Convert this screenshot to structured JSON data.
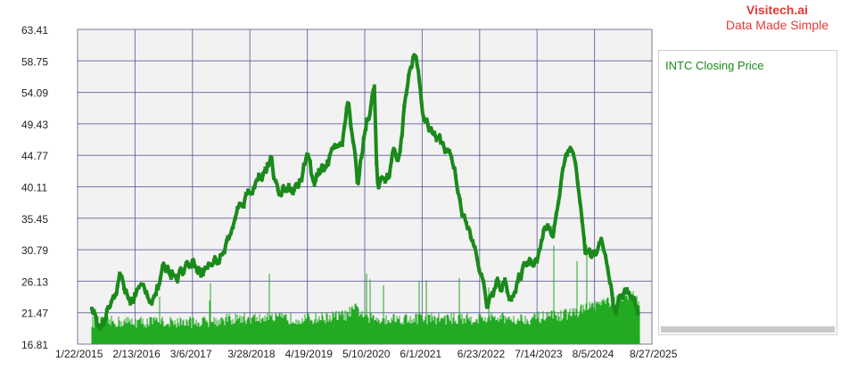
{
  "brand": {
    "line1": "Visitech.ai",
    "line2": "Data Made Simple",
    "color": "#e53935"
  },
  "colors": {
    "series": "#1a8a1a",
    "volume": "#22aa22",
    "plot_bg": "#f2f2f2",
    "grid": "#4a4a8a"
  },
  "chart_data": {
    "type": "line",
    "ylim": [
      16.81,
      63.41
    ],
    "y_ticks": [
      "63.41",
      "58.75",
      "54.09",
      "49.43",
      "44.77",
      "40.11",
      "35.45",
      "30.79",
      "26.13",
      "21.47",
      "16.81"
    ],
    "x_ticks": [
      "1/22/2015",
      "2/13/2016",
      "3/6/2017",
      "3/28/2018",
      "4/19/2019",
      "5/10/2020",
      "6/1/2021",
      "6/23/2022",
      "7/14/2023",
      "8/5/2024",
      "8/27/2025"
    ],
    "grid": true,
    "legend_position": "right",
    "series": [
      {
        "name": "INTC Closing Price",
        "x": [
          "2015-01-22",
          "2015-04-01",
          "2015-07-01",
          "2015-09-01",
          "2015-11-01",
          "2016-01-15",
          "2016-03-01",
          "2016-06-01",
          "2016-09-01",
          "2016-12-01",
          "2017-03-01",
          "2017-06-01",
          "2017-09-01",
          "2017-12-15",
          "2018-02-01",
          "2018-04-01",
          "2018-06-01",
          "2018-08-15",
          "2018-10-01",
          "2018-12-15",
          "2019-03-01",
          "2019-04-19",
          "2019-06-01",
          "2019-08-01",
          "2019-10-01",
          "2019-12-15",
          "2020-01-20",
          "2020-03-23",
          "2020-05-10",
          "2020-07-15",
          "2020-08-01",
          "2020-10-15",
          "2020-11-15",
          "2021-01-01",
          "2021-02-15",
          "2021-04-15",
          "2021-06-01",
          "2021-08-01",
          "2021-10-01",
          "2021-12-15",
          "2022-02-01",
          "2022-04-01",
          "2022-06-23",
          "2022-08-15",
          "2022-10-15",
          "2022-12-15",
          "2023-02-15",
          "2023-05-01",
          "2023-07-14",
          "2023-09-15",
          "2023-11-01",
          "2023-12-28",
          "2024-02-15",
          "2024-04-01",
          "2024-06-01",
          "2024-08-05",
          "2024-10-01",
          "2024-12-15",
          "2025-02-15",
          "2025-04-15",
          "2025-06-15",
          "2025-08-27"
        ],
        "y": [
          25.5,
          23.5,
          20.5,
          22.5,
          26.5,
          22.8,
          25.0,
          24.0,
          27.5,
          28.0,
          29.0,
          28.5,
          29.5,
          34.5,
          37.5,
          40.0,
          42.0,
          44.0,
          38.5,
          40.0,
          41.0,
          45.0,
          40.0,
          42.0,
          45.0,
          48.0,
          53.0,
          40.0,
          49.0,
          54.0,
          40.0,
          41.0,
          44.0,
          45.0,
          55.0,
          60.0,
          52.0,
          48.0,
          47.0,
          45.0,
          40.0,
          34.0,
          28.0,
          22.5,
          25.0,
          26.0,
          24.0,
          29.0,
          30.5,
          34.0,
          33.0,
          42.0,
          47.0,
          44.0,
          30.5,
          29.5,
          31.0,
          22.0,
          24.0,
          24.5,
          19.5,
          20.5
        ]
      }
    ],
    "volume": {
      "baseline": 16.81,
      "x": [
        "2015-01-22",
        "2015-06-01",
        "2016-01-01",
        "2016-06-01",
        "2017-01-01",
        "2017-06-01",
        "2018-01-01",
        "2018-06-01",
        "2019-01-01",
        "2019-06-01",
        "2020-01-01",
        "2020-03-15",
        "2020-06-01",
        "2021-01-01",
        "2021-06-01",
        "2022-01-01",
        "2022-06-01",
        "2023-01-01",
        "2023-06-01",
        "2024-01-01",
        "2024-04-01",
        "2024-08-05",
        "2024-10-01",
        "2025-01-01",
        "2025-04-15",
        "2025-08-27"
      ],
      "y": [
        20.0,
        20.0,
        20.0,
        20.0,
        20.0,
        20.0,
        20.5,
        20.5,
        20.5,
        20.5,
        21.0,
        22.0,
        20.5,
        20.5,
        20.5,
        20.5,
        20.5,
        20.5,
        20.5,
        21.0,
        21.5,
        22.5,
        23.0,
        23.0,
        24.0,
        21.0
      ]
    }
  },
  "legend": {
    "items": [
      {
        "label": "INTC Closing Price",
        "color": "#1a8a1a"
      }
    ]
  }
}
